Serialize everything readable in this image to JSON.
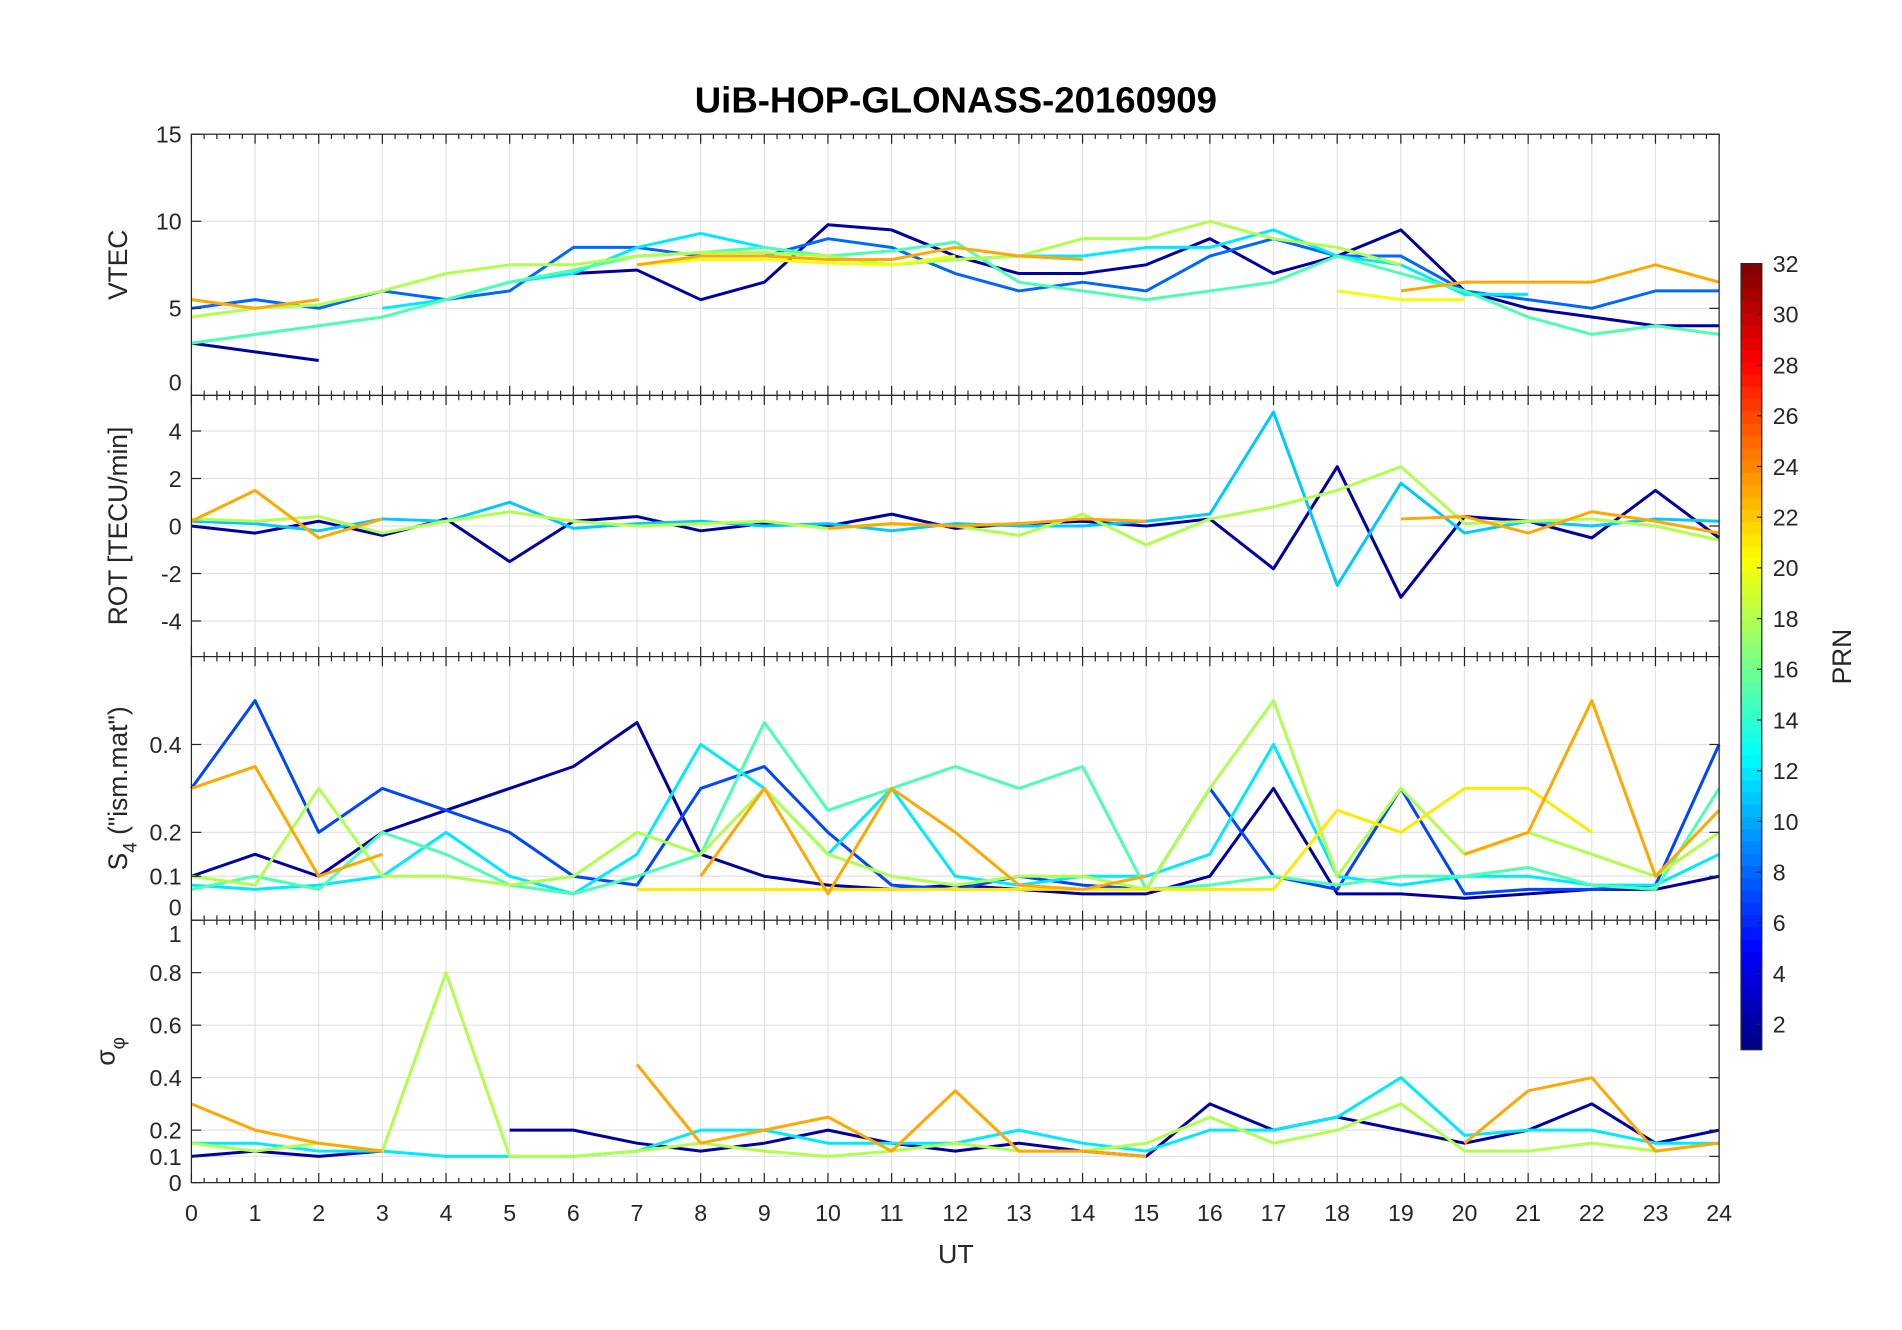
{
  "chart_data": {
    "type": "line",
    "title": "UiB-HOP-GLONASS-20160909",
    "xlabel": "UT",
    "x": [
      0,
      1,
      2,
      3,
      4,
      5,
      6,
      7,
      8,
      9,
      10,
      11,
      12,
      13,
      14,
      15,
      16,
      17,
      18,
      19,
      20,
      21,
      22,
      23,
      24
    ],
    "xlim": [
      0,
      24
    ],
    "xticks": [
      "0",
      "1",
      "2",
      "3",
      "4",
      "5",
      "6",
      "7",
      "8",
      "9",
      "10",
      "11",
      "12",
      "13",
      "14",
      "15",
      "16",
      "17",
      "18",
      "19",
      "20",
      "21",
      "22",
      "23",
      "24"
    ],
    "grid": true,
    "colorbar": {
      "label": "PRN",
      "range": [
        1,
        32
      ],
      "colormap": "jet",
      "ticks": [
        "2",
        "4",
        "6",
        "8",
        "10",
        "12",
        "14",
        "16",
        "18",
        "20",
        "22",
        "24",
        "26",
        "28",
        "30",
        "32"
      ],
      "placement": "right"
    },
    "panels": [
      {
        "name": "vtec",
        "ylabel": {
          "main": "VTEC",
          "sub": "",
          "rest": ""
        },
        "ylim": [
          0,
          15
        ],
        "yticks": [
          "0",
          "5",
          "10",
          "15"
        ],
        "series": [
          {
            "name": "PRN 2",
            "prn": 2,
            "values": [
              3,
              2.5,
              2,
              null,
              null,
              null,
              7,
              7.2,
              5.5,
              6.5,
              9.8,
              9.5,
              8,
              7,
              7,
              7.5,
              9,
              7,
              8,
              9.5,
              6,
              5,
              4.5,
              4,
              4
            ]
          },
          {
            "name": "PRN 8",
            "prn": 8,
            "values": [
              5,
              5.5,
              5,
              6,
              5.5,
              6,
              8.5,
              8.5,
              8,
              8,
              9,
              8.5,
              7,
              6,
              6.5,
              6,
              8,
              9,
              8,
              8,
              6,
              5.5,
              5,
              6,
              6
            ]
          },
          {
            "name": "PRN 12",
            "prn": 12,
            "values": [
              null,
              null,
              null,
              5,
              5.5,
              6.5,
              7,
              8.5,
              9.3,
              8.5,
              8,
              7.5,
              7.8,
              8,
              8,
              8.5,
              8.5,
              9.5,
              8,
              7.5,
              5.8,
              5.8,
              null,
              null,
              null
            ]
          },
          {
            "name": "PRN 15",
            "prn": 15,
            "values": [
              3,
              3.5,
              4,
              4.5,
              5.5,
              6.5,
              7.2,
              8,
              8.2,
              8.5,
              8,
              8.3,
              8.8,
              6.5,
              6,
              5.5,
              6,
              6.5,
              8,
              7,
              6,
              4.5,
              3.5,
              4,
              3.5
            ]
          },
          {
            "name": "PRN 18",
            "prn": 18,
            "values": [
              4.5,
              5,
              5.2,
              6,
              7,
              7.5,
              7.5,
              8,
              8.2,
              8.2,
              8,
              7.5,
              7.8,
              8,
              9,
              9,
              10,
              9,
              8.5,
              7.5,
              null,
              null,
              null,
              null,
              null
            ]
          },
          {
            "name": "PRN 20",
            "prn": 20,
            "values": [
              null,
              null,
              null,
              null,
              null,
              null,
              null,
              7.5,
              7.8,
              7.8,
              7.6,
              7.5,
              8,
              null,
              null,
              null,
              null,
              null,
              6,
              5.5,
              5.5,
              null,
              null,
              null,
              null
            ]
          },
          {
            "name": "PRN 23",
            "prn": 23,
            "values": [
              5.5,
              5,
              5.5,
              null,
              null,
              null,
              null,
              7.5,
              8,
              8,
              7.8,
              7.8,
              8.5,
              8,
              7.8,
              null,
              null,
              null,
              null,
              6,
              6.5,
              6.5,
              6.5,
              7.5,
              6.5
            ]
          }
        ]
      },
      {
        "name": "rot",
        "ylabel": {
          "main": "ROT [TECU/min]",
          "sub": "",
          "rest": ""
        },
        "ylim": [
          -5.5,
          5.5
        ],
        "yticks": [
          "-4",
          "-2",
          "0",
          "2",
          "4"
        ],
        "series": [
          {
            "name": "PRN 2",
            "prn": 2,
            "values": [
              0,
              -0.3,
              0.2,
              -0.4,
              0.3,
              -1.5,
              0.2,
              0.4,
              -0.2,
              0.1,
              0,
              0.5,
              -0.1,
              0.1,
              0.2,
              0,
              0.3,
              -1.8,
              2.5,
              -3,
              0.4,
              0.2,
              -0.5,
              1.5,
              -0.5
            ]
          },
          {
            "name": "PRN 11",
            "prn": 11,
            "values": [
              0.2,
              0.1,
              -0.2,
              0.3,
              0.2,
              1,
              -0.1,
              0.1,
              0.2,
              0,
              0.1,
              -0.2,
              0.1,
              0,
              0,
              0.2,
              0.5,
              4.8,
              -2.5,
              1.8,
              -0.3,
              0.2,
              0,
              0.3,
              0.2
            ]
          },
          {
            "name": "PRN 18",
            "prn": 18,
            "values": [
              0.3,
              0.2,
              0.4,
              -0.3,
              0.2,
              0.6,
              0.2,
              0,
              0.1,
              0.2,
              -0.1,
              0.1,
              0,
              -0.4,
              0.5,
              -0.8,
              0.3,
              0.8,
              1.5,
              2.5,
              0.1,
              0.2,
              0.3,
              0,
              -0.6
            ]
          },
          {
            "name": "PRN 23",
            "prn": 23,
            "values": [
              0.2,
              1.5,
              -0.5,
              0.3,
              null,
              null,
              null,
              null,
              null,
              null,
              -0.1,
              0.1,
              0,
              0.1,
              0.3,
              0.2,
              null,
              null,
              null,
              0.3,
              0.4,
              -0.3,
              0.6,
              0.2,
              -0.3
            ]
          }
        ]
      },
      {
        "name": "s4",
        "ylabel": {
          "main": "S",
          "sub": "4",
          "rest": " (\"ism.mat\")"
        },
        "ylim": [
          0,
          0.6
        ],
        "yticks": [
          "0",
          "0.1",
          "0.2",
          "0.4"
        ],
        "series": [
          {
            "name": "PRN 2",
            "prn": 2,
            "values": [
              0.1,
              0.15,
              0.1,
              0.2,
              0.25,
              0.3,
              0.35,
              0.45,
              0.15,
              0.1,
              0.08,
              0.07,
              0.08,
              0.07,
              0.06,
              0.06,
              0.1,
              0.3,
              0.06,
              0.06,
              0.05,
              0.06,
              0.07,
              0.07,
              0.1
            ]
          },
          {
            "name": "PRN 7",
            "prn": 7,
            "values": [
              0.3,
              0.5,
              0.2,
              0.3,
              0.25,
              0.2,
              0.1,
              0.08,
              0.3,
              0.35,
              0.2,
              0.08,
              0.07,
              0.1,
              0.08,
              0.07,
              0.3,
              0.1,
              0.07,
              0.3,
              0.06,
              0.07,
              0.07,
              0.08,
              0.4
            ]
          },
          {
            "name": "PRN 12",
            "prn": 12,
            "values": [
              0.08,
              0.07,
              0.08,
              0.1,
              0.2,
              0.1,
              0.06,
              0.15,
              0.4,
              0.3,
              0.15,
              0.3,
              0.1,
              0.08,
              0.1,
              0.1,
              0.15,
              0.4,
              0.1,
              0.08,
              0.1,
              0.1,
              0.08,
              0.08,
              0.15
            ]
          },
          {
            "name": "PRN 15",
            "prn": 15,
            "values": [
              0.07,
              0.1,
              0.07,
              0.2,
              0.15,
              0.08,
              0.06,
              0.1,
              0.15,
              0.45,
              0.25,
              0.3,
              0.35,
              0.3,
              0.35,
              0.07,
              0.08,
              0.1,
              0.08,
              0.1,
              0.1,
              0.12,
              0.08,
              0.07,
              0.3
            ]
          },
          {
            "name": "PRN 18",
            "prn": 18,
            "values": [
              0.1,
              0.08,
              0.3,
              0.1,
              0.1,
              0.08,
              0.1,
              0.2,
              0.15,
              0.3,
              0.15,
              0.1,
              0.08,
              0.1,
              0.1,
              0.07,
              0.3,
              0.5,
              0.1,
              0.3,
              0.15,
              0.2,
              0.15,
              0.1,
              0.2
            ]
          },
          {
            "name": "PRN 21",
            "prn": 21,
            "values": [
              null,
              null,
              null,
              null,
              null,
              null,
              null,
              0.07,
              0.07,
              0.07,
              0.07,
              0.07,
              0.07,
              0.07,
              0.07,
              0.07,
              0.07,
              0.07,
              0.25,
              0.2,
              0.3,
              0.3,
              0.2,
              null,
              null
            ]
          },
          {
            "name": "PRN 23",
            "prn": 23,
            "values": [
              0.3,
              0.35,
              0.1,
              0.15,
              null,
              null,
              null,
              null,
              0.1,
              0.3,
              0.06,
              0.3,
              0.2,
              0.08,
              0.07,
              0.1,
              null,
              null,
              null,
              null,
              0.15,
              0.2,
              0.5,
              0.1,
              0.25
            ]
          }
        ]
      },
      {
        "name": "sigma-phi",
        "ylabel": {
          "main": "σ",
          "sub": "φ",
          "rest": ""
        },
        "ylim": [
          0,
          1
        ],
        "yticks": [
          "0",
          "0.1",
          "0.2",
          "0.4",
          "0.6",
          "0.8",
          "1"
        ],
        "series": [
          {
            "name": "PRN 2",
            "prn": 2,
            "values": [
              0.1,
              0.12,
              0.1,
              0.12,
              null,
              0.2,
              0.2,
              0.15,
              0.12,
              0.15,
              0.2,
              0.15,
              0.12,
              0.15,
              0.12,
              0.1,
              0.3,
              0.2,
              0.25,
              0.2,
              0.15,
              0.2,
              0.3,
              0.15,
              0.2
            ]
          },
          {
            "name": "PRN 12",
            "prn": 12,
            "values": [
              0.15,
              0.15,
              0.12,
              0.12,
              0.1,
              0.1,
              0.1,
              0.12,
              0.2,
              0.2,
              0.15,
              0.15,
              0.15,
              0.2,
              0.15,
              0.12,
              0.2,
              0.2,
              0.25,
              0.4,
              0.18,
              0.2,
              0.2,
              0.15,
              0.15
            ]
          },
          {
            "name": "PRN 18",
            "prn": 18,
            "values": [
              0.15,
              0.12,
              0.15,
              0.12,
              0.8,
              0.1,
              0.1,
              0.12,
              0.15,
              0.12,
              0.1,
              0.12,
              0.15,
              0.12,
              0.12,
              0.15,
              0.25,
              0.15,
              0.2,
              0.3,
              0.12,
              0.12,
              0.15,
              0.12,
              0.15
            ]
          },
          {
            "name": "PRN 23",
            "prn": 23,
            "values": [
              0.3,
              0.2,
              0.15,
              0.12,
              null,
              null,
              null,
              0.45,
              0.15,
              0.2,
              0.25,
              0.12,
              0.35,
              0.12,
              0.12,
              0.1,
              null,
              null,
              null,
              null,
              0.15,
              0.35,
              0.4,
              0.12,
              0.15
            ]
          }
        ]
      }
    ]
  }
}
